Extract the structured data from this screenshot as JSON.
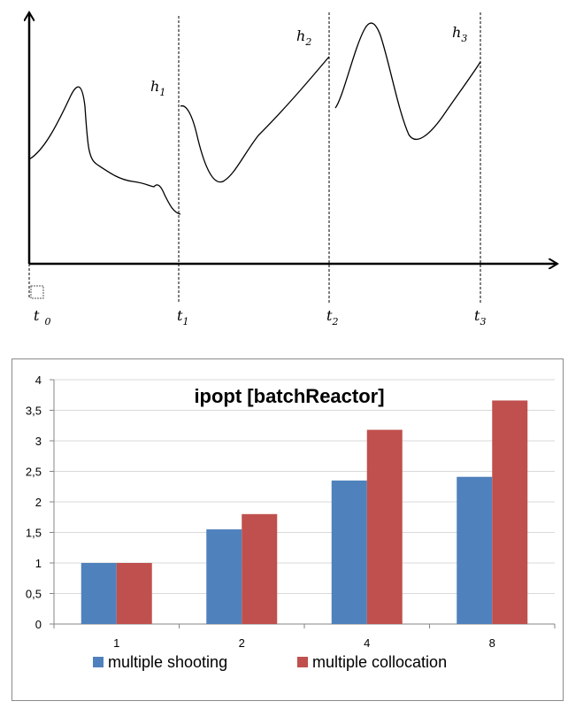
{
  "diagram": {
    "x_labels": [
      {
        "main": "t",
        "sub": "0"
      },
      {
        "main": "t",
        "sub": "1"
      },
      {
        "main": "t",
        "sub": "2"
      },
      {
        "main": "t",
        "sub": "3"
      }
    ],
    "segment_labels": [
      {
        "main": "h",
        "sub": "1"
      },
      {
        "main": "h",
        "sub": "2"
      },
      {
        "main": "h",
        "sub": "3"
      }
    ]
  },
  "chart_data": {
    "type": "bar",
    "title": "ipopt [batchReactor]",
    "categories": [
      "1",
      "2",
      "4",
      "8"
    ],
    "series": [
      {
        "name": "multiple shooting",
        "color": "#4f81bd",
        "values": [
          1.0,
          1.55,
          2.35,
          2.41
        ]
      },
      {
        "name": "multiple collocation",
        "color": "#c0504d",
        "values": [
          1.0,
          1.8,
          3.18,
          3.66
        ]
      }
    ],
    "ylim": [
      0,
      4
    ],
    "yticks": [
      "0",
      "0,5",
      "1",
      "1,5",
      "2",
      "2,5",
      "3",
      "3,5",
      "4"
    ],
    "grid": true,
    "legend": "bottom"
  }
}
